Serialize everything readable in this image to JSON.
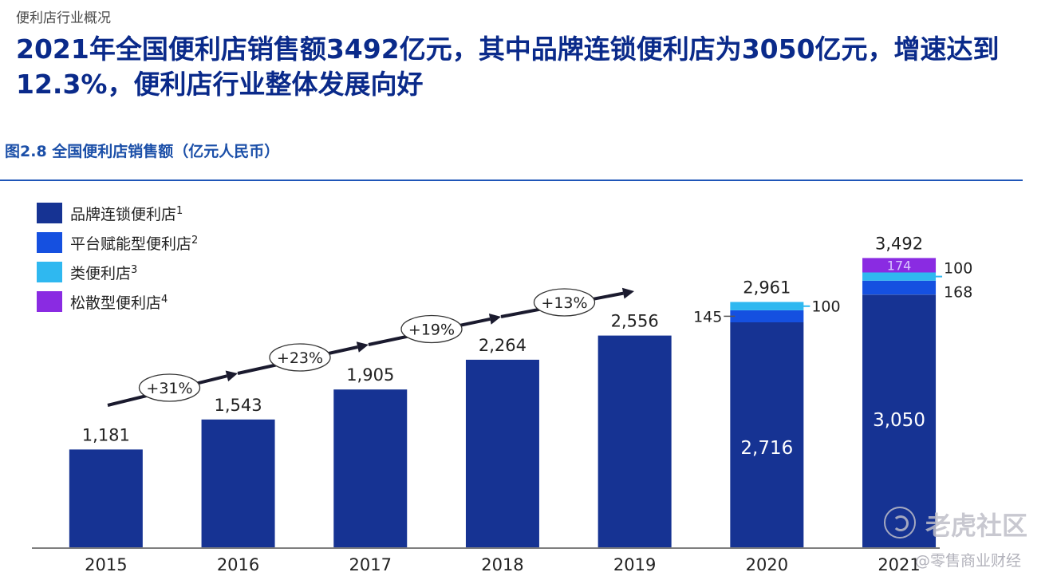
{
  "page": {
    "section_label": "便利店行业概况",
    "headline": "2021年全国便利店销售额3492亿元，其中品牌连锁便利店为3050亿元，增速达到12.3%，便利店行业整体发展向好",
    "figure_title": "图2.8 全国便利店销售额（亿元人民币）",
    "watermark_main": "老虎社区",
    "watermark_sub": "@零售商业财经"
  },
  "colors": {
    "brand_chain": "#163393",
    "platform": "#1550e0",
    "quasi": "#2fb8f0",
    "loose": "#8a2be2",
    "headline": "#0a2a8a",
    "figure_title": "#1b4fa8",
    "text": "#222222"
  },
  "chart_data": {
    "type": "bar",
    "stacked": true,
    "title": "图2.8 全国便利店销售额（亿元人民币）",
    "unit": "亿元人民币",
    "categories": [
      "2015",
      "2016",
      "2017",
      "2018",
      "2019",
      "2020",
      "2021"
    ],
    "legend": [
      {
        "label": "品牌连锁便利店",
        "sup": "1",
        "color_key": "brand_chain"
      },
      {
        "label": "平台赋能型便利店",
        "sup": "2",
        "color_key": "platform"
      },
      {
        "label": "类便利店",
        "sup": "3",
        "color_key": "quasi"
      },
      {
        "label": "松散型便利店",
        "sup": "4",
        "color_key": "loose"
      }
    ],
    "series": [
      {
        "name": "品牌连锁便利店",
        "values": [
          1181,
          1543,
          1905,
          2264,
          2556,
          2716,
          3050
        ]
      },
      {
        "name": "平台赋能型便利店",
        "values": [
          0,
          0,
          0,
          0,
          0,
          145,
          168
        ]
      },
      {
        "name": "类便利店",
        "values": [
          0,
          0,
          0,
          0,
          0,
          100,
          100
        ]
      },
      {
        "name": "松散型便利店",
        "values": [
          0,
          0,
          0,
          0,
          0,
          0,
          174
        ]
      }
    ],
    "totals": [
      1181,
      1543,
      1905,
      2264,
      2556,
      2961,
      3492
    ],
    "total_labels": [
      "1,181",
      "1,543",
      "1,905",
      "2,264",
      "2,556",
      "2,961",
      "3,492"
    ],
    "inner_labels": [
      "",
      "",
      "",
      "",
      "",
      "2,716",
      "3,050"
    ],
    "segment_labels": {
      "2020": {
        "platform": "145",
        "quasi": "100"
      },
      "2021": {
        "platform": "168",
        "quasi": "100",
        "loose": "174"
      }
    },
    "growth_labels": [
      "+31%",
      "+23%",
      "+19%",
      "+13%"
    ],
    "ylim": [
      0,
      3600
    ],
    "xlabel": "",
    "ylabel": ""
  }
}
